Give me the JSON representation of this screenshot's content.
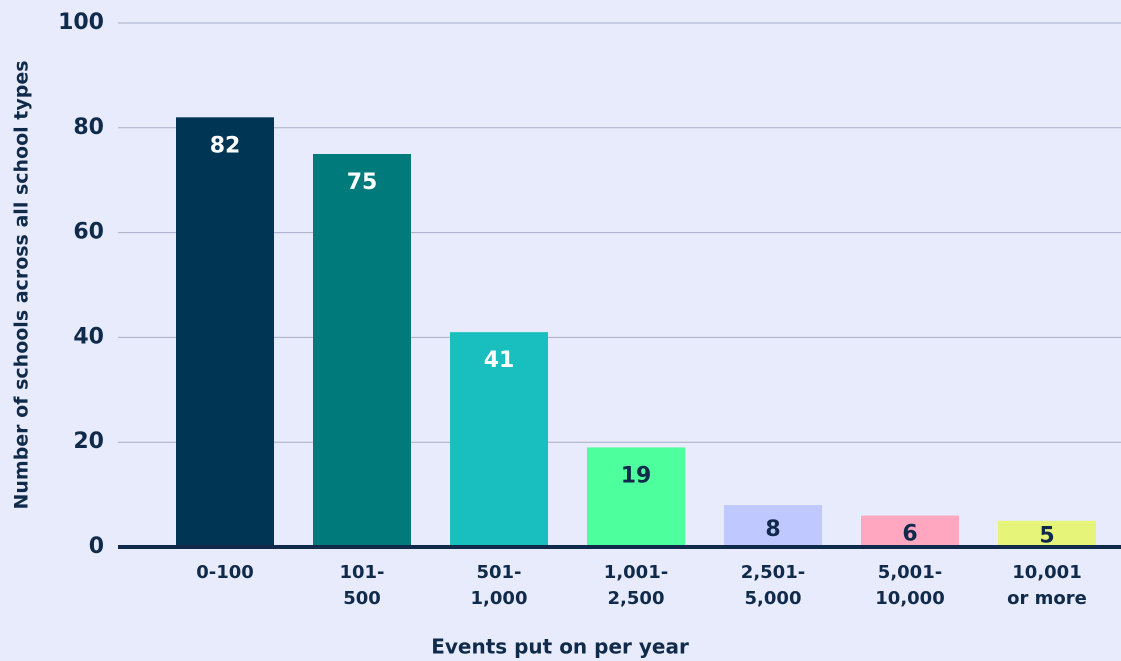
{
  "chart_data": {
    "type": "bar",
    "x_label": "Events put on per year",
    "y_label": "Number of schools across all school types",
    "categories": [
      [
        "0-100"
      ],
      [
        "101-",
        "500"
      ],
      [
        "501-",
        "1,000"
      ],
      [
        "1,001-",
        "2,500"
      ],
      [
        "2,501-",
        "5,000"
      ],
      [
        "5,001-",
        "10,000"
      ],
      [
        "10,001",
        "or more"
      ]
    ],
    "values": [
      82,
      75,
      41,
      19,
      8,
      6,
      5
    ],
    "colors": [
      "#003554",
      "#007a7a",
      "#19bfbf",
      "#4dff9d",
      "#bfc8ff",
      "#ffa6c0",
      "#e6f57a"
    ],
    "value_label_colors": [
      "#ffffff",
      "#ffffff",
      "#ffffff",
      "#0f2a4a",
      "#0f2a4a",
      "#0f2a4a",
      "#0f2a4a"
    ],
    "ylim": [
      0,
      100
    ],
    "yticks": [
      0,
      20,
      40,
      60,
      80,
      100
    ],
    "grid": true
  }
}
